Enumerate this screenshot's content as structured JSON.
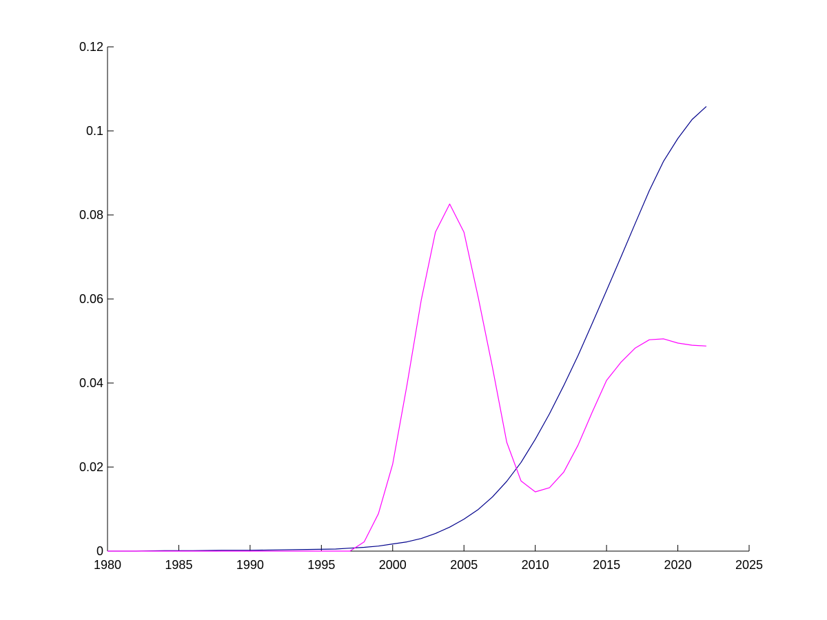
{
  "chart_data": {
    "type": "line",
    "title": "",
    "xlabel": "",
    "ylabel": "",
    "xlim": [
      1980,
      2025
    ],
    "ylim": [
      0,
      0.12
    ],
    "grid": false,
    "legend": null,
    "x_ticks": [
      "1980",
      "1985",
      "1990",
      "1995",
      "2000",
      "2005",
      "2010",
      "2015",
      "2020",
      "2025"
    ],
    "x_tick_values": [
      1980,
      1985,
      1990,
      1995,
      2000,
      2005,
      2010,
      2015,
      2020,
      2025
    ],
    "y_ticks": [
      "0",
      "0.02",
      "0.04",
      "0.06",
      "0.08",
      "0.1",
      "0.12"
    ],
    "y_tick_values": [
      0,
      0.02,
      0.04,
      0.06,
      0.08,
      0.1,
      0.12
    ],
    "series": [
      {
        "color": "#00008b",
        "x": [
          1980,
          1982,
          1984,
          1986,
          1988,
          1990,
          1992,
          1994,
          1996,
          1997,
          1998,
          1999,
          2000,
          2001,
          2002,
          2003,
          2004,
          2005,
          2006,
          2007,
          2008,
          2009,
          2010,
          2011,
          2012,
          2013,
          2014,
          2015,
          2016,
          2017,
          2018,
          2019,
          2020,
          2021,
          2022
        ],
        "y": [
          0,
          0,
          0.0001,
          0.0001,
          0.0002,
          0.0002,
          0.0003,
          0.0004,
          0.0005,
          0.0007,
          0.0009,
          0.0012,
          0.0017,
          0.0022,
          0.003,
          0.0042,
          0.0057,
          0.0076,
          0.0099,
          0.0129,
          0.0166,
          0.0211,
          0.0266,
          0.0327,
          0.0394,
          0.0465,
          0.0542,
          0.062,
          0.0699,
          0.0779,
          0.0858,
          0.0928,
          0.0982,
          0.1027,
          0.1058
        ]
      },
      {
        "color": "#ff00ff",
        "x": [
          1980,
          1985,
          1990,
          1995,
          1997,
          1998,
          1999,
          2000,
          2001,
          2002,
          2003,
          2004,
          2005,
          2006,
          2007,
          2008,
          2009,
          2010,
          2011,
          2012,
          2013,
          2014,
          2015,
          2016,
          2017,
          2018,
          2019,
          2020,
          2021,
          2022
        ],
        "y": [
          0,
          0,
          0,
          0,
          0,
          0.0022,
          0.0089,
          0.0207,
          0.0395,
          0.0597,
          0.0759,
          0.0826,
          0.0759,
          0.0604,
          0.0437,
          0.0259,
          0.0167,
          0.0141,
          0.0151,
          0.0188,
          0.0252,
          0.0331,
          0.0406,
          0.0449,
          0.0483,
          0.0503,
          0.0505,
          0.0495,
          0.049,
          0.0488
        ]
      }
    ]
  }
}
